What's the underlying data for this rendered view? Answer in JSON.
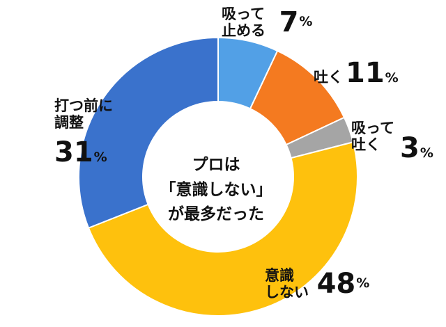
{
  "chart_data": {
    "type": "pie",
    "donut": true,
    "categories": [
      "吸って止める",
      "吐く",
      "吸って吐く",
      "意識しない",
      "打つ前に調整"
    ],
    "values": [
      7,
      11,
      3,
      48,
      31
    ],
    "unit": "%",
    "colors": [
      "#52a0e6",
      "#f47a20",
      "#a5a5a5",
      "#fec10d",
      "#3a72cc"
    ],
    "title": [
      "プロは",
      "「意識しない」",
      "が最多だった"
    ],
    "labels": [
      {
        "lines": [
          "吸って",
          "止める"
        ],
        "value": "7",
        "unit": "%"
      },
      {
        "lines": [
          "吐く"
        ],
        "value": "11",
        "unit": "%"
      },
      {
        "lines": [
          "吸って",
          "吐く"
        ],
        "value": "3",
        "unit": "%"
      },
      {
        "lines": [
          "意識",
          "しない"
        ],
        "value": "48",
        "unit": "%"
      },
      {
        "lines": [
          "打つ前に",
          "調整"
        ],
        "value": "31",
        "unit": "%"
      }
    ]
  }
}
